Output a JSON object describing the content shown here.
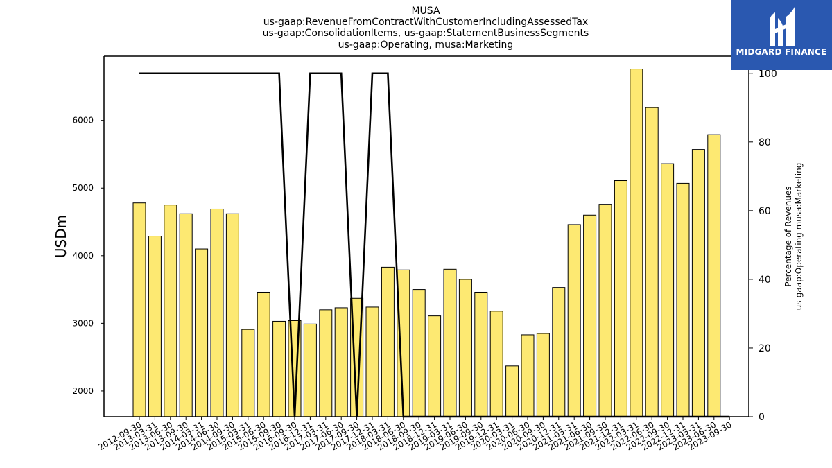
{
  "chart_data": {
    "type": "bar",
    "title_lines": [
      "MUSA",
      "us-gaap:RevenueFromContractWithCustomerIncludingAssessedTax",
      "us-gaap:ConsolidationItems, us-gaap:StatementBusinessSegments",
      "us-gaap:Operating, musa:Marketing"
    ],
    "ylabel": "USDm",
    "y2label_lines": [
      "Percentage of Revenues",
      "us-gaap:Operating musa:Marketing"
    ],
    "ylim": [
      1620,
      6950
    ],
    "y2lim": [
      0,
      105
    ],
    "yticks": [
      2000,
      3000,
      4000,
      5000,
      6000
    ],
    "y2ticks": [
      0,
      20,
      40,
      60,
      80,
      100
    ],
    "bar_color": "#fde972",
    "line_color": "#000000",
    "grid": false,
    "categories": [
      "2012-09-30",
      "2013-03-31",
      "2013-06-30",
      "2013-09-30",
      "2014-03-31",
      "2014-06-30",
      "2014-09-30",
      "2015-03-31",
      "2015-06-30",
      "2015-09-30",
      "2016-09-30",
      "2016-12-31",
      "2017-03-31",
      "2017-06-30",
      "2017-09-30",
      "2017-12-31",
      "2018-03-31",
      "2018-06-30",
      "2018-09-30",
      "2018-12-31",
      "2019-03-31",
      "2019-06-30",
      "2019-09-30",
      "2019-12-31",
      "2020-03-31",
      "2020-06-30",
      "2020-09-30",
      "2020-12-31",
      "2021-03-31",
      "2021-06-30",
      "2021-09-30",
      "2021-12-31",
      "2022-03-31",
      "2022-06-30",
      "2022-09-30",
      "2022-12-31",
      "2023-03-31",
      "2023-06-30",
      "2023-09-30"
    ],
    "series": [
      {
        "kind": "bar",
        "values": [
          4780,
          4290,
          4750,
          4620,
          4100,
          4690,
          4620,
          2910,
          3460,
          3030,
          3040,
          2990,
          3200,
          3230,
          3370,
          3240,
          3830,
          3790,
          3500,
          3110,
          3800,
          3650,
          3460,
          3180,
          2370,
          2830,
          2850,
          3530,
          4460,
          4600,
          4760,
          5110,
          6760,
          6190,
          5360,
          5070,
          5570,
          5790,
          0
        ]
      },
      {
        "kind": "line",
        "axis": "right",
        "values": [
          100,
          100,
          100,
          100,
          100,
          100,
          100,
          100,
          100,
          100,
          0,
          100,
          100,
          100,
          0,
          100,
          100,
          0,
          0,
          0,
          0,
          0,
          0,
          0,
          0,
          0,
          0,
          0,
          0,
          0,
          0,
          0,
          0,
          0,
          0,
          0,
          0,
          0,
          0
        ]
      }
    ]
  },
  "logo": {
    "text": "MIDGARD FINANCE",
    "icon": "midgard-logo-icon"
  }
}
